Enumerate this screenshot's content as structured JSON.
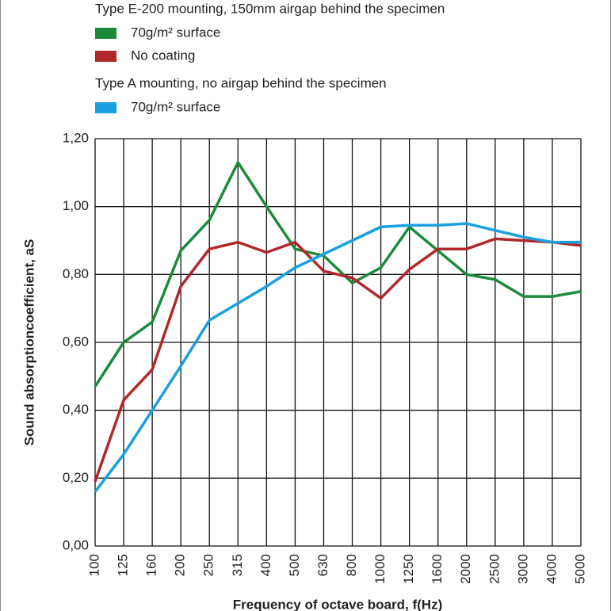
{
  "chart_data": {
    "type": "line",
    "legend_headings": [
      "Type E-200 mounting, 150mm airgap behind the specimen",
      "Type A mounting, no airgap behind the specimen"
    ],
    "x_label": "Frequency of octave board, f(Hz)",
    "y_label": "Sound absorptioncoefficient, aS",
    "categories": [
      "100",
      "125",
      "160",
      "200",
      "250",
      "315",
      "400",
      "500",
      "630",
      "800",
      "1000",
      "1250",
      "1600",
      "2000",
      "2500",
      "3000",
      "4000",
      "5000"
    ],
    "series": [
      {
        "name": "70g/m² surface",
        "color": "#1b8b3b",
        "values": [
          0.47,
          0.6,
          0.66,
          0.87,
          0.96,
          1.13,
          1.0,
          0.875,
          0.855,
          0.775,
          0.82,
          0.94,
          0.87,
          0.8,
          0.785,
          0.735,
          0.735,
          0.75
        ]
      },
      {
        "name": "No coating",
        "color": "#b0282a",
        "values": [
          0.19,
          0.43,
          0.52,
          0.765,
          0.875,
          0.895,
          0.865,
          0.895,
          0.81,
          0.79,
          0.73,
          0.815,
          0.875,
          0.875,
          0.905,
          0.9,
          0.895,
          0.885
        ]
      },
      {
        "name": "70g/m² surface",
        "color": "#1a9fe0",
        "values": [
          0.16,
          0.27,
          0.4,
          0.53,
          0.665,
          0.715,
          0.765,
          0.82,
          0.86,
          0.9,
          0.94,
          0.945,
          0.945,
          0.95,
          0.93,
          0.91,
          0.895,
          0.895
        ]
      }
    ],
    "ylim": [
      0,
      1.2
    ],
    "yticks": [
      {
        "value": 0,
        "label": "0,00"
      },
      {
        "value": 0.2,
        "label": "0,20"
      },
      {
        "value": 0.4,
        "label": "0,40"
      },
      {
        "value": 0.6,
        "label": "0,60"
      },
      {
        "value": 0.8,
        "label": "0,80"
      },
      {
        "value": 1.0,
        "label": "1,00"
      },
      {
        "value": 1.2,
        "label": "1,20"
      }
    ],
    "grid": true
  }
}
